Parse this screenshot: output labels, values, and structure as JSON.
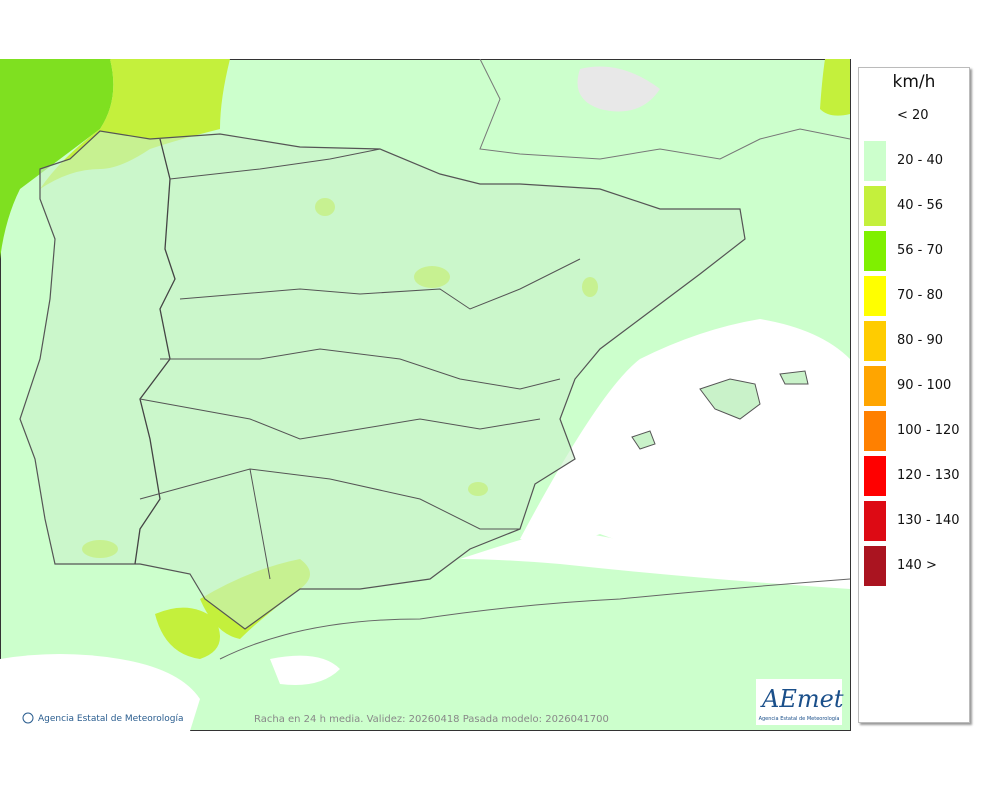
{
  "legend": {
    "unit": "km/h",
    "items": [
      {
        "label": "< 20",
        "color": "#ffffff"
      },
      {
        "label": "20 - 40",
        "color": "#ccffcc"
      },
      {
        "label": "40 - 56",
        "color": "#c4f03c"
      },
      {
        "label": "56 - 70",
        "color": "#7ff000"
      },
      {
        "label": "70 - 80",
        "color": "#ffff00"
      },
      {
        "label": "80 - 90",
        "color": "#ffcc00"
      },
      {
        "label": "90 - 100",
        "color": "#ffa500"
      },
      {
        "label": "100 - 120",
        "color": "#ff8000"
      },
      {
        "label": "120 - 130",
        "color": "#ff0000"
      },
      {
        "label": "130 - 140",
        "color": "#dd0a14"
      },
      {
        "label": "140 >",
        "color": "#aa1420"
      }
    ]
  },
  "footer": {
    "credit": "Agencia Estatal de Meteorología",
    "caption": "Racha en 24 h media. Validez: 20260418 Pasada modelo: 2026041700",
    "logo": "AEmet",
    "logo_subtitle": "Agencia Estatal de Meteorología"
  }
}
